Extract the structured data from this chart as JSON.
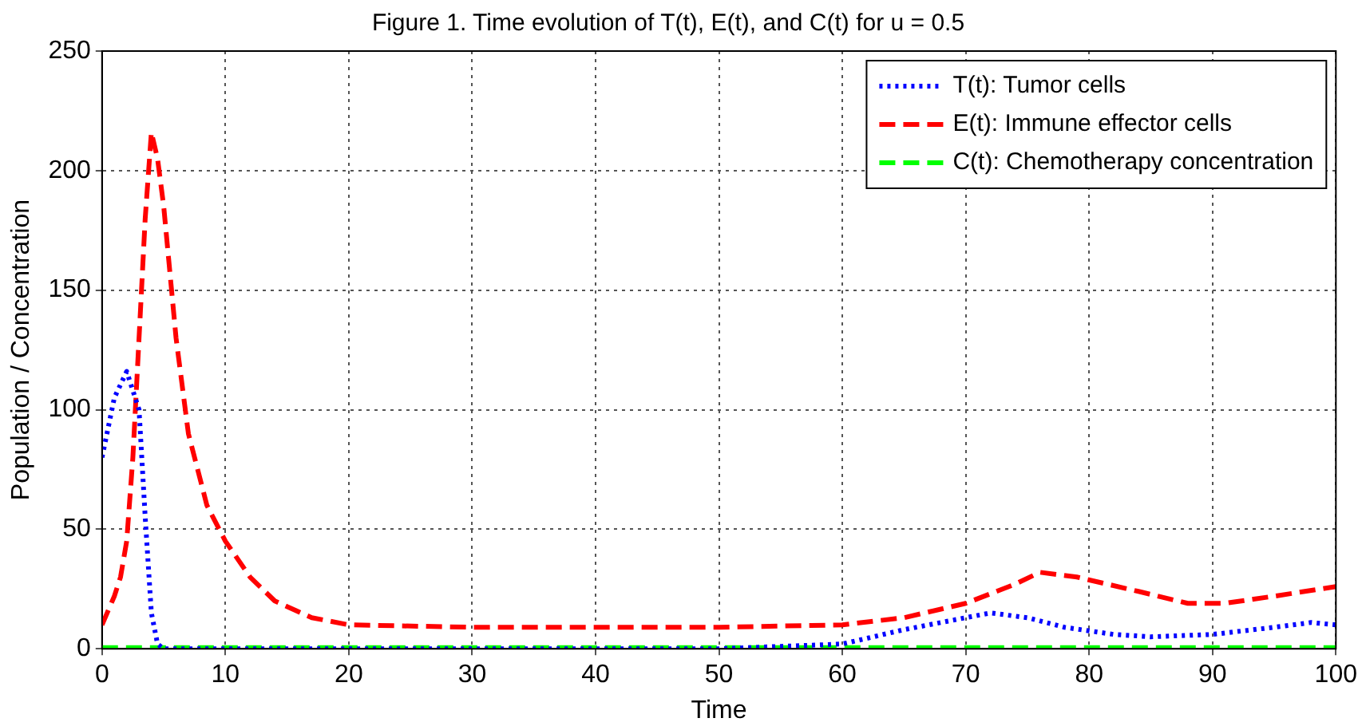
{
  "chart_data": {
    "type": "line",
    "title": "Figure 1. Time evolution of T(t), E(t), and C(t) for u = 0.5",
    "xlabel": "Time",
    "ylabel": "Population / Concentration",
    "xlim": [
      0,
      100
    ],
    "xticks": [
      0,
      10,
      20,
      30,
      40,
      50,
      60,
      70,
      80,
      90,
      100
    ],
    "ylim": [
      0,
      250
    ],
    "yticks": [
      0,
      50,
      100,
      150,
      200,
      250
    ],
    "grid": true,
    "legend": "top right",
    "marker": "none",
    "series": [
      {
        "name": "T(t): Tumor cells",
        "color": "#0000ff",
        "line_style": "dotted",
        "x": [
          0,
          1,
          2,
          3,
          3.5,
          4,
          4.5,
          5,
          10,
          20,
          30,
          40,
          50,
          55,
          60,
          65,
          70,
          72,
          75,
          78,
          82,
          85,
          90,
          95,
          98,
          100
        ],
        "values": [
          80,
          105,
          116,
          100,
          55,
          15,
          2,
          0,
          0,
          0,
          0,
          0,
          0,
          1,
          2,
          8,
          13,
          15,
          13,
          9,
          6,
          5,
          6,
          9,
          11,
          10
        ]
      },
      {
        "name": "E(t): Immune effector cells",
        "color": "#ff0000",
        "line_style": "dashed",
        "x": [
          0,
          1,
          1.5,
          2,
          2.5,
          3,
          3.5,
          4,
          4.5,
          5,
          6,
          7,
          8.5,
          10,
          12,
          14,
          17,
          20,
          30,
          40,
          50,
          60,
          65,
          70,
          74,
          76,
          79,
          84,
          88,
          91,
          95,
          100
        ],
        "values": [
          10,
          22,
          30,
          45,
          80,
          130,
          180,
          216,
          205,
          185,
          130,
          90,
          60,
          45,
          30,
          20,
          13,
          10,
          9,
          9,
          9,
          10,
          13,
          19,
          27,
          32,
          30,
          24,
          19,
          19,
          22,
          26
        ]
      },
      {
        "name": "C(t): Chemotherapy concentration",
        "color": "#00ff00",
        "line_style": "dashed",
        "x": [
          0,
          25,
          50,
          75,
          100
        ],
        "values": [
          0.5,
          0.5,
          0.5,
          0.5,
          0.5
        ]
      }
    ]
  }
}
